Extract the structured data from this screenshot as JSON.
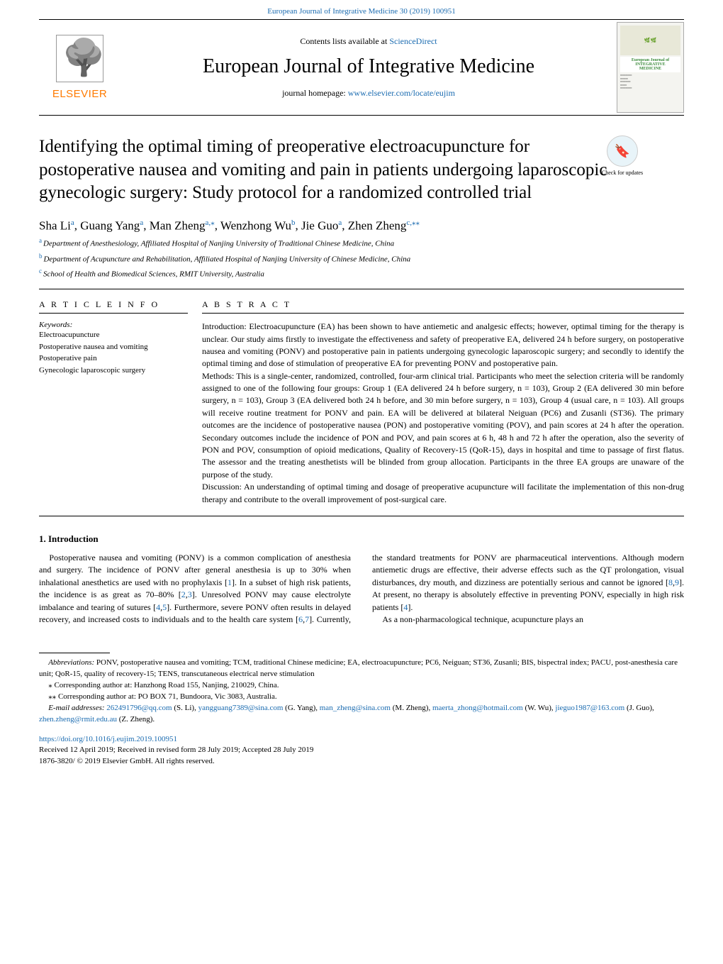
{
  "top_link": {
    "label": "European Journal of Integrative Medicine 30 (2019) 100951",
    "prefix": ""
  },
  "header": {
    "contents_prefix": "Contents lists available at ",
    "contents_link": "ScienceDirect",
    "journal_title": "European Journal of Integrative Medicine",
    "homepage_prefix": "journal homepage: ",
    "homepage_link": "www.elsevier.com/locate/eujim",
    "logo_text": "ELSEVIER"
  },
  "cover": {
    "title_line1": "European Journal of",
    "title_line2": "INTEGRATIVE",
    "title_line3": "MEDICINE"
  },
  "check_updates": {
    "label": "Check for updates"
  },
  "article": {
    "title": "Identifying the optimal timing of preoperative electroacupuncture for postoperative nausea and vomiting and pain in patients undergoing laparoscopic gynecologic surgery: Study protocol for a randomized controlled trial",
    "authors_html_parts": {
      "p1": "Sha Li",
      "s1": "a",
      "p2": ", Guang Yang",
      "s2": "a",
      "p3": ", Man Zheng",
      "s3": "a,",
      "s3b": "⁎",
      "p4": ", Wenzhong Wu",
      "s4": "b",
      "p5": ", Jie Guo",
      "s5": "a",
      "p6": ", Zhen Zheng",
      "s6": "c,",
      "s6b": "⁎⁎"
    },
    "aff": {
      "a": "Department of Anesthesiology, Affiliated Hospital of Nanjing University of Traditional Chinese Medicine, China",
      "b": "Department of Acupuncture and Rehabilitation, Affiliated Hospital of Nanjing University of Chinese Medicine, China",
      "c": "School of Health and Biomedical Sciences, RMIT University, Australia"
    }
  },
  "info": {
    "head": "A R T I C L E  I N F O",
    "kw_label": "Keywords:",
    "kw_list": "Electroacupuncture\nPostoperative nausea and vomiting\nPostoperative pain\nGynecologic laparoscopic surgery"
  },
  "abstract": {
    "head": "A B S T R A C T",
    "body": "Introduction: Electroacupuncture (EA) has been shown to have antiemetic and analgesic effects; however, optimal timing for the therapy is unclear. Our study aims firstly to investigate the effectiveness and safety of preoperative EA, delivered 24 h before surgery, on postoperative nausea and vomiting (PONV) and postoperative pain in patients undergoing gynecologic laparoscopic surgery; and secondly to identify the optimal timing and dose of stimulation of preoperative EA for preventing PONV and postoperative pain.\nMethods: This is a single-center, randomized, controlled, four-arm clinical trial. Participants who meet the selection criteria will be randomly assigned to one of the following four groups: Group 1 (EA delivered 24 h before surgery, n = 103), Group 2 (EA delivered 30 min before surgery, n = 103), Group 3 (EA delivered both 24 h before, and 30 min before surgery, n = 103), Group 4 (usual care, n = 103). All groups will receive routine treatment for PONV and pain. EA will be delivered at bilateral Neiguan (PC6) and Zusanli (ST36). The primary outcomes are the incidence of postoperative nausea (PON) and postoperative vomiting (POV), and pain scores at 24 h after the operation. Secondary outcomes include the incidence of PON and POV, and pain scores at 6 h, 48 h and 72 h after the operation, also the severity of PON and POV, consumption of opioid medications, Quality of Recovery-15 (QoR-15), days in hospital and time to passage of first flatus. The assessor and the treating anesthetists will be blinded from group allocation. Participants in the three EA groups are unaware of the purpose of the study.\nDiscussion: An understanding of optimal timing and dosage of preoperative acupuncture will facilitate the implementation of this non-drug therapy and contribute to the overall improvement of post-surgical care."
  },
  "sections": {
    "intro_head": "1.  Introduction",
    "intro_p1_a": "Postoperative nausea and vomiting (PONV) is a common complication of anesthesia and surgery. The incidence of PONV after general anesthesia is up to 30% when inhalational anesthetics are used with no prophylaxis [",
    "intro_p1_r1": "1",
    "intro_p1_b": "]. In a subset of high risk patients, the incidence is as great as 70–80% [",
    "intro_p1_r2": "2",
    "intro_p1_c": ",",
    "intro_p1_r3": "3",
    "intro_p1_d": "]. Unresolved PONV may cause electrolyte imbalance and tearing of sutures [",
    "intro_p1_r4": "4",
    "intro_p1_e": ",",
    "intro_p1_r5": "5",
    "intro_p1_f": "]. Furthermore, severe PONV often",
    "intro_p1_g": "results in delayed recovery, and increased costs to individuals and to the health care system [",
    "intro_p1_r6": "6",
    "intro_p1_h": ",",
    "intro_p1_r7": "7",
    "intro_p1_i": "]. Currently, the standard treatments for PONV are pharmaceutical interventions. Although modern antiemetic drugs are effective, their adverse effects such as the QT prolongation, visual disturbances, dry mouth, and dizziness are potentially serious and cannot be ignored [",
    "intro_p1_r8": "8",
    "intro_p1_j": ",",
    "intro_p1_r9": "9",
    "intro_p1_k": "]. At present, no therapy is absolutely effective in preventing PONV, especially in high risk patients [",
    "intro_p1_r10": "4",
    "intro_p1_l": "].",
    "intro_p2": "As a non-pharmacological technique, acupuncture plays an"
  },
  "footnotes": {
    "abbrev_label": "Abbreviations:",
    "abbrev_text": " PONV, postoperative nausea and vomiting; TCM, traditional Chinese medicine; EA, electroacupuncture; PC6, Neiguan; ST36, Zusanli; BIS, bispectral index; PACU, post-anesthesia care unit; QoR-15, quality of recovery-15; TENS, transcutaneous electrical nerve stimulation",
    "corr1_mark": "⁎",
    "corr1_text": " Corresponding author at: Hanzhong Road 155, Nanjing, 210029, China.",
    "corr2_mark": "⁎⁎",
    "corr2_text": " Corresponding author at: PO BOX 71, Bundoora, Vic 3083, Australia.",
    "email_label": "E-mail addresses: ",
    "emails": {
      "e1": "262491796@qq.com",
      "n1": " (S. Li), ",
      "e2": "yangguang7389@sina.com",
      "n2": " (G. Yang), ",
      "e3": "man_zheng@sina.com",
      "n3": " (M. Zheng), ",
      "e4": "maerta_zhong@hotmail.com",
      "n4": " (W. Wu), ",
      "e5": "jieguo1987@163.com",
      "n5": " (J. Guo), ",
      "e6": "zhen.zheng@rmit.edu.au",
      "n6": " (Z. Zheng)."
    }
  },
  "doi": {
    "url": "https://doi.org/10.1016/j.eujim.2019.100951",
    "received": "Received 12 April 2019; Received in revised form 28 July 2019; Accepted 28 July 2019",
    "copyright": "1876-3820/ © 2019 Elsevier GmbH. All rights reserved."
  }
}
